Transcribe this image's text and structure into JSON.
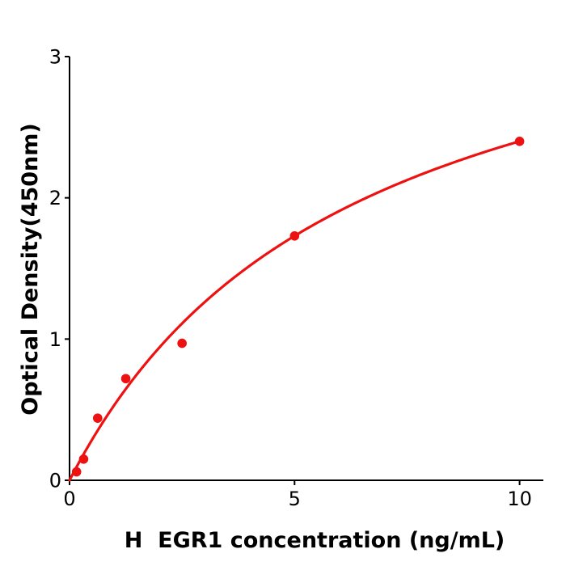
{
  "figure": {
    "background": "#ffffff"
  },
  "chart_data": {
    "type": "scatter",
    "title": "",
    "xlabel": "H  EGR1 concentration (ng/mL)",
    "ylabel": "Optical Density(450nm)",
    "x": [
      0.156,
      0.3125,
      0.625,
      1.25,
      2.5,
      5,
      10
    ],
    "y": [
      0.06,
      0.15,
      0.44,
      0.72,
      0.97,
      1.73,
      2.4
    ],
    "xlim": [
      0,
      10.55
    ],
    "ylim": [
      0,
      3
    ],
    "xticks": [
      "0",
      "5",
      "10"
    ],
    "xtick_values": [
      0,
      5,
      10
    ],
    "yticks": [
      "0",
      "1",
      "2",
      "3"
    ],
    "ytick_values": [
      0,
      1,
      2,
      3
    ],
    "grid": false,
    "legend": null,
    "marker_color": "#ee1111",
    "line_color": "#ee1111",
    "axis_color": "#000000",
    "marker_radius_px": 5.8,
    "fit_curve": {
      "model": "michaelis_menten",
      "formula": "y = a*x / (b + x)",
      "a": 3.917,
      "b": 6.32,
      "x_start": 0,
      "x_end": 10
    }
  }
}
